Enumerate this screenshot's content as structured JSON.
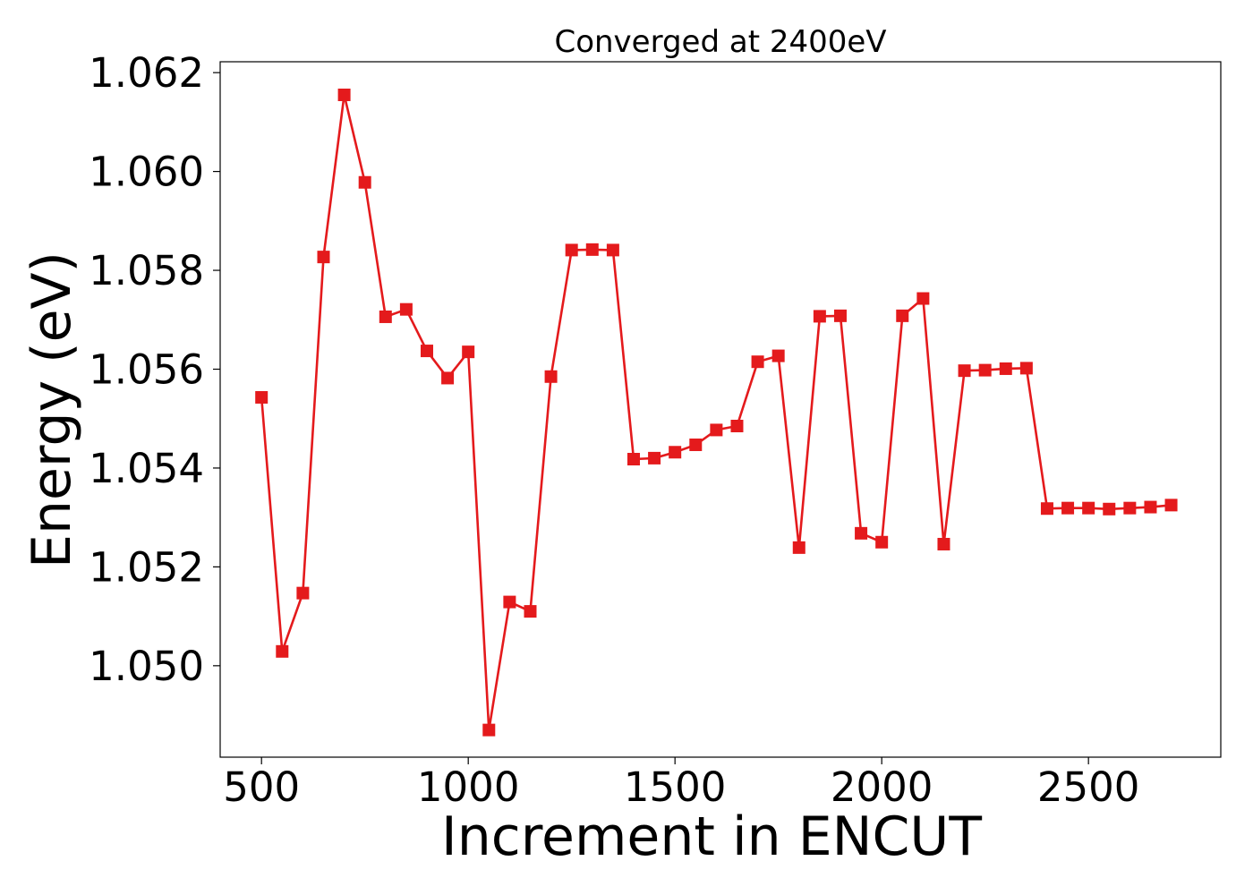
{
  "chart_data": {
    "type": "line",
    "title": "Converged at 2400eV",
    "xlabel": "Increment in ENCUT",
    "ylabel": "Energy (eV)",
    "xlim": [
      400,
      2820
    ],
    "ylim": [
      1.04815,
      1.06222
    ],
    "xticks": [
      500,
      1000,
      1500,
      2000,
      2500
    ],
    "xtick_labels": [
      "500",
      "1000",
      "1500",
      "2000",
      "2500"
    ],
    "yticks": [
      1.05,
      1.052,
      1.054,
      1.056,
      1.058,
      1.06,
      1.062
    ],
    "ytick_labels": [
      "1.050",
      "1.052",
      "1.054",
      "1.056",
      "1.058",
      "1.060",
      "1.062"
    ],
    "grid": false,
    "legend": "none",
    "series": [
      {
        "color": "#e41a1c",
        "marker": "square",
        "x": [
          500,
          550,
          600,
          650,
          700,
          750,
          800,
          850,
          900,
          950,
          1000,
          1050,
          1100,
          1150,
          1200,
          1250,
          1300,
          1350,
          1400,
          1450,
          1500,
          1550,
          1600,
          1650,
          1700,
          1750,
          1800,
          1850,
          1900,
          1950,
          2000,
          2050,
          2100,
          2150,
          2200,
          2250,
          2300,
          2350,
          2400,
          2450,
          2500,
          2550,
          2600,
          2650,
          2700
        ],
        "y": [
          1.05543,
          1.05029,
          1.05147,
          1.05827,
          1.06155,
          1.05978,
          1.05706,
          1.05721,
          1.05637,
          1.05582,
          1.05635,
          1.0487,
          1.05129,
          1.0511,
          1.05585,
          1.05841,
          1.05842,
          1.05841,
          1.05418,
          1.0542,
          1.05432,
          1.05447,
          1.05477,
          1.05485,
          1.05615,
          1.05627,
          1.05239,
          1.05707,
          1.05708,
          1.05268,
          1.0525,
          1.05708,
          1.05743,
          1.05246,
          1.05597,
          1.05598,
          1.05601,
          1.05602,
          1.05318,
          1.05319,
          1.05319,
          1.05317,
          1.05319,
          1.05321,
          1.05325
        ]
      }
    ]
  }
}
